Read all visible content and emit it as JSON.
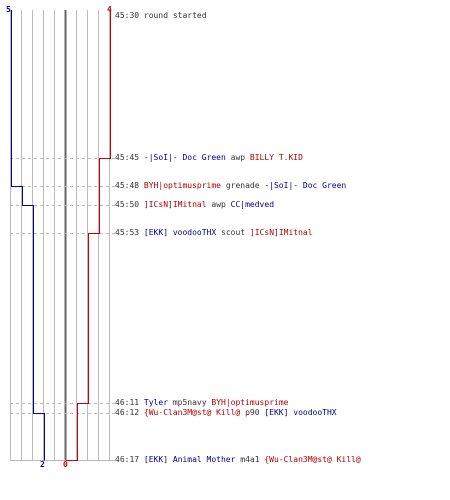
{
  "colors": {
    "blue_team": "#00008b",
    "red_team": "#cc0000",
    "grid": "#bbbbbb",
    "center": "#666666",
    "text": "#333333"
  },
  "teams": {
    "blue": {
      "start": "5",
      "end": "2"
    },
    "red": {
      "start": "4",
      "end": "0"
    }
  },
  "timeline": {
    "start": "45:30",
    "end": "46:17",
    "max_players": 5,
    "blue_steps": [
      {
        "t": "45:30",
        "alive": 5
      },
      {
        "t": "45:48",
        "alive": 4
      },
      {
        "t": "45:50",
        "alive": 3
      },
      {
        "t": "46:12",
        "alive": 2
      },
      {
        "t": "46:17",
        "alive": 2
      }
    ],
    "red_steps": [
      {
        "t": "45:30",
        "alive": 4
      },
      {
        "t": "45:45",
        "alive": 3
      },
      {
        "t": "45:53",
        "alive": 2
      },
      {
        "t": "46:11",
        "alive": 1
      },
      {
        "t": "46:17",
        "alive": 0
      }
    ]
  },
  "events": [
    {
      "time": "45:30",
      "note": "round started"
    },
    {
      "time": "45:45",
      "killer": "-|SoI|- Doc Green",
      "killer_team": "blue",
      "weapon": "awp",
      "victim": "BILLY T.KID",
      "victim_team": "red"
    },
    {
      "time": "45:48",
      "killer": "BYH|optimusprime",
      "killer_team": "red",
      "weapon": "grenade",
      "victim": "-|SoI|- Doc Green",
      "victim_team": "blue"
    },
    {
      "time": "45:50",
      "killer": "]ICsN]IMitnal",
      "killer_team": "red",
      "weapon": "awp",
      "victim": "CC|medved",
      "victim_team": "blue"
    },
    {
      "time": "45:53",
      "killer": "[EKK] voodooTHX",
      "killer_team": "blue",
      "weapon": "scout",
      "victim": "]ICsN]IMitnal",
      "victim_team": "red"
    },
    {
      "time": "46:11",
      "killer": "Tyler",
      "killer_team": "blue",
      "weapon": "mp5navy",
      "victim": "BYH|optimusprime",
      "victim_team": "red"
    },
    {
      "time": "46:12",
      "killer": "{Wu-Clan3M@st@ Kill@",
      "killer_team": "red",
      "weapon": "p90",
      "victim": "[EKK] voodooTHX",
      "victim_team": "blue"
    },
    {
      "time": "46:17",
      "killer": "[EKK] Animal Mother",
      "killer_team": "blue",
      "weapon": "m4a1",
      "victim": "{Wu-Clan3M@st@ Kill@",
      "victim_team": "red"
    }
  ]
}
